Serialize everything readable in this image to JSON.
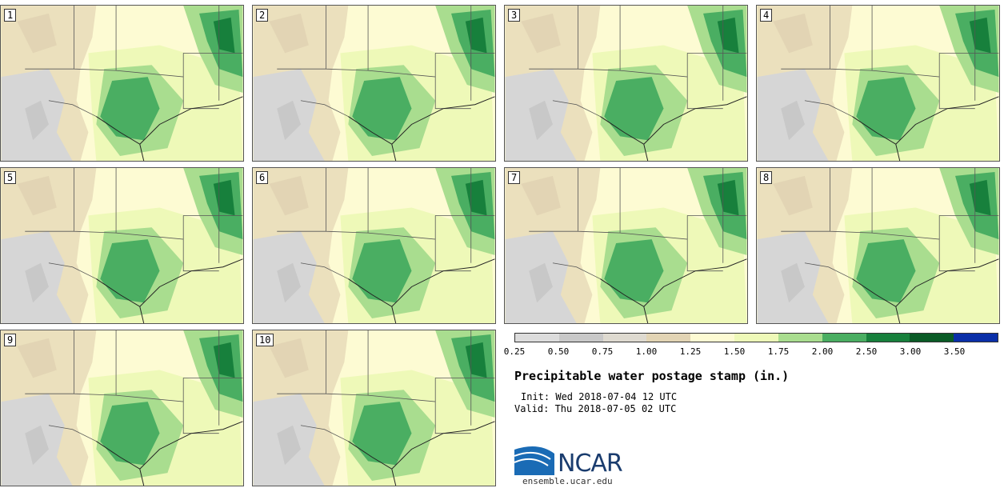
{
  "panels": [
    {
      "label": "1"
    },
    {
      "label": "2"
    },
    {
      "label": "3"
    },
    {
      "label": "4"
    },
    {
      "label": "5"
    },
    {
      "label": "6"
    },
    {
      "label": "7"
    },
    {
      "label": "8"
    },
    {
      "label": "9"
    },
    {
      "label": "10"
    }
  ],
  "colorbar": {
    "colors": [
      "#dcdcdc",
      "#c8c8c8",
      "#dedad0",
      "#e2d4b4",
      "#fdfbd3",
      "#eef9b8",
      "#a9dd8f",
      "#4aae62",
      "#17803c",
      "#0a5b26",
      "#0a2fa8"
    ],
    "ticks": [
      "0.25",
      "0.50",
      "0.75",
      "1.00",
      "1.25",
      "1.50",
      "1.75",
      "2.00",
      "2.50",
      "3.00",
      "3.50"
    ]
  },
  "title": "Precipitable water postage stamp (in.)",
  "init": "Init: Wed 2018-07-04 12 UTC",
  "valid": "Valid: Thu 2018-07-05 02 UTC",
  "logo": "NCAR",
  "site": "ensemble.ucar.edu"
}
